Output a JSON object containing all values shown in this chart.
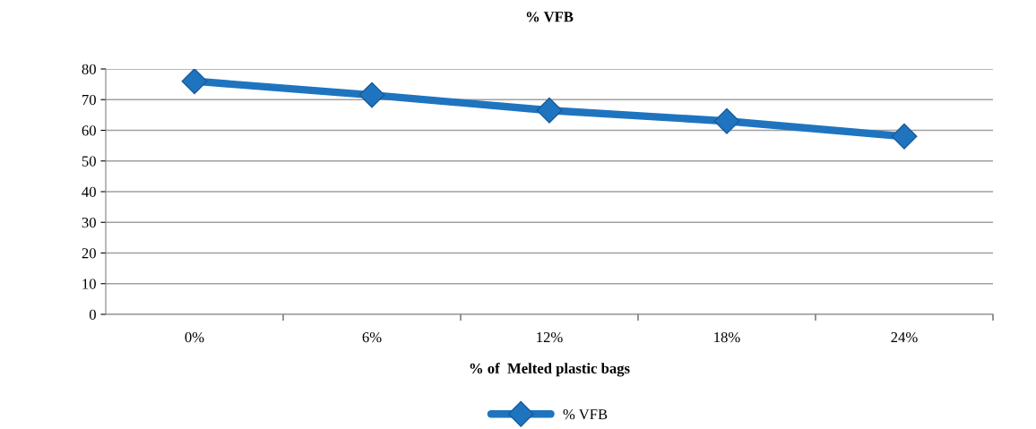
{
  "chart_data": {
    "type": "line",
    "title": "% VFB",
    "xlabel": "% of  Melted plastic bags",
    "categories": [
      "0%",
      "6%",
      "12%",
      "18%",
      "24%"
    ],
    "series": [
      {
        "name": "% VFB",
        "color": "#1f74bf",
        "values": [
          76,
          71.5,
          66.5,
          63,
          58
        ]
      }
    ],
    "ylim": [
      0,
      80
    ],
    "yticks": [
      0,
      10,
      20,
      30,
      40,
      50,
      60,
      70,
      80
    ],
    "grid": "y",
    "legend": "bottom",
    "marker": "diamond",
    "line_style": "solid"
  }
}
